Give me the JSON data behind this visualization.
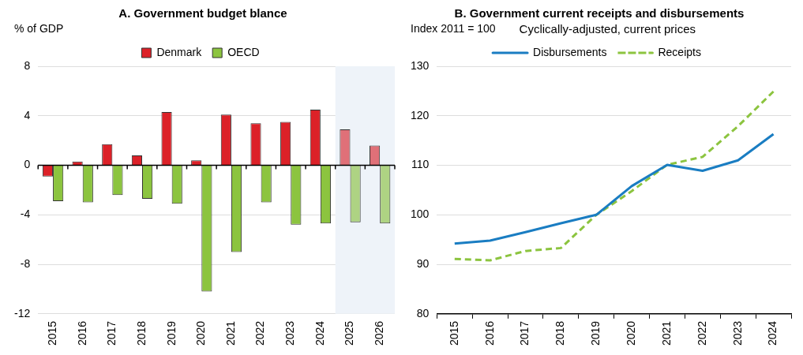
{
  "chart_data": [
    {
      "type": "bar",
      "title": "A. Government budget blance",
      "ylabel": "% of GDP",
      "categories": [
        "2015",
        "2016",
        "2017",
        "2018",
        "2019",
        "2020",
        "2021",
        "2022",
        "2023",
        "2024",
        "2025",
        "2026"
      ],
      "series": [
        {
          "name": "Denmark",
          "color": "#dc2128",
          "colors": [
            "#dc2128",
            "#dc2128",
            "#dc2128",
            "#dc2128",
            "#dc2128",
            "#dc2128",
            "#dc2128",
            "#dc2128",
            "#dc2128",
            "#dc2128",
            "#e07078",
            "#e07078"
          ],
          "values": [
            -0.9,
            0.3,
            1.7,
            0.8,
            4.3,
            0.4,
            4.1,
            3.4,
            3.5,
            4.5,
            2.9,
            1.6
          ]
        },
        {
          "name": "OECD",
          "color": "#8cc43f",
          "colors": [
            "#8cc43f",
            "#8cc43f",
            "#8cc43f",
            "#8cc43f",
            "#8cc43f",
            "#8cc43f",
            "#8cc43f",
            "#8cc43f",
            "#8cc43f",
            "#8cc43f",
            "#aed383",
            "#aed383"
          ],
          "values": [
            -2.9,
            -3.0,
            -2.4,
            -2.7,
            -3.1,
            -10.2,
            -7.0,
            -3.0,
            -4.8,
            -4.7,
            -4.6,
            -4.7
          ]
        }
      ],
      "ylim": [
        -12,
        8
      ],
      "yticks": [
        -12,
        -8,
        -4,
        0,
        4,
        8
      ],
      "grid": "y",
      "legend": "top",
      "bands": [
        {
          "axis": "x",
          "from": "2025",
          "to": "2026",
          "color": "#eef3f9"
        }
      ]
    },
    {
      "type": "line",
      "title": "B. Government current receipts and disbursements",
      "ylabel": "Index 2011 = 100",
      "subtitle": "Cyclically-adjusted, current prices",
      "categories": [
        "2015",
        "2016",
        "2017",
        "2018",
        "2019",
        "2020",
        "2021",
        "2022",
        "2023",
        "2024"
      ],
      "series": [
        {
          "name": "Disbursements",
          "color": "#1a7dc2",
          "line_style": "solid",
          "values": [
            94.2,
            94.8,
            96.5,
            98.3,
            100,
            105.8,
            110.1,
            108.9,
            111.0,
            116.3
          ]
        },
        {
          "name": "Receipts",
          "color": "#8cc43f",
          "line_style": "dashed",
          "values": [
            91.1,
            90.8,
            92.7,
            93.3,
            100,
            104.8,
            110.1,
            111.7,
            117.9,
            124.9
          ]
        }
      ],
      "ylim": [
        80,
        130
      ],
      "yticks": [
        80,
        90,
        100,
        110,
        120,
        130
      ],
      "grid": "y",
      "legend": "top",
      "marker": "none"
    }
  ]
}
